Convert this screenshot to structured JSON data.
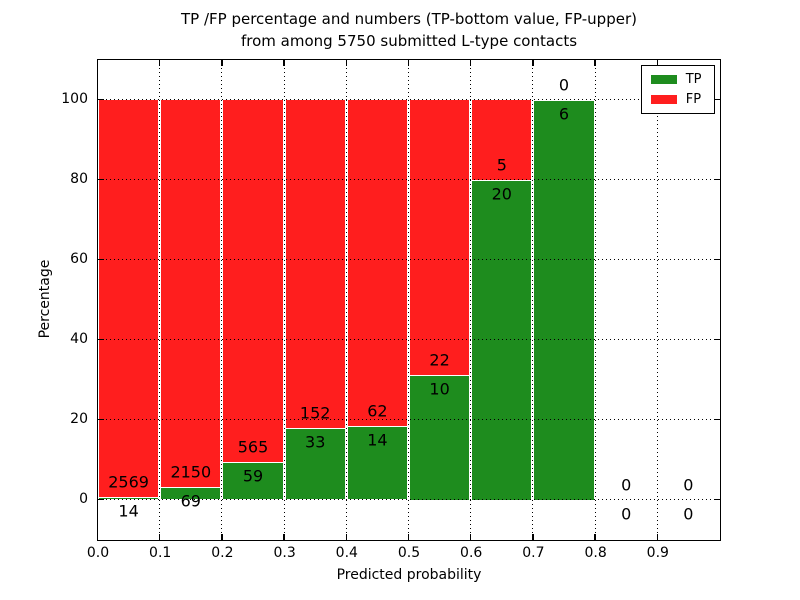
{
  "title": {
    "line1": "TP /FP percentage and numbers (TP-bottom value, FP-upper)",
    "line2": "from among 5750 submitted L-type contacts"
  },
  "axes": {
    "xlabel": "Predicted probability",
    "ylabel": "Percentage"
  },
  "legend": {
    "items": [
      {
        "label": "TP",
        "color": "#1E8C1E"
      },
      {
        "label": "FP",
        "color": "#FF1E1E"
      }
    ]
  },
  "colors": {
    "tp": "#1E8C1E",
    "fp": "#FF1E1E",
    "grid": "#000000",
    "background": "#FFFFFF",
    "text": "#000000"
  },
  "chart_data": {
    "type": "bar",
    "stacked": true,
    "title": "TP /FP percentage and numbers (TP-bottom value, FP-upper) from among 5750 submitted L-type contacts",
    "xlabel": "Predicted probability",
    "ylabel": "Percentage",
    "x_tick_labels": [
      "0.0",
      "0.1",
      "0.2",
      "0.3",
      "0.4",
      "0.5",
      "0.6",
      "0.7",
      "0.8",
      "0.9"
    ],
    "y_ticks": [
      0,
      20,
      40,
      60,
      80,
      100
    ],
    "xlim": [
      0,
      1
    ],
    "ylim": [
      -10,
      110
    ],
    "grid": true,
    "legend_position": "upper right",
    "bin_width": 0.1,
    "bin_starts": [
      0.0,
      0.1,
      0.2,
      0.3,
      0.4,
      0.5,
      0.6,
      0.7,
      0.8,
      0.9
    ],
    "series": [
      {
        "name": "TP",
        "color": "#1E8C1E",
        "counts": [
          14,
          69,
          59,
          33,
          14,
          10,
          20,
          6,
          0,
          0
        ]
      },
      {
        "name": "FP",
        "color": "#FF1E1E",
        "counts": [
          2569,
          2150,
          565,
          152,
          62,
          22,
          5,
          0,
          0,
          0
        ]
      }
    ]
  }
}
